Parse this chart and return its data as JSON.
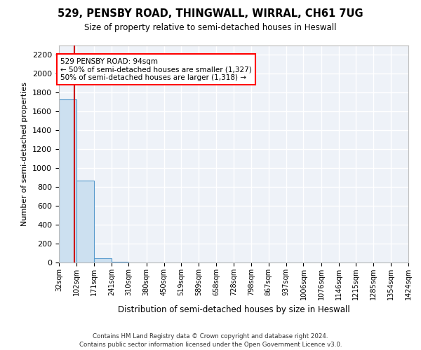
{
  "title": "529, PENSBY ROAD, THINGWALL, WIRRAL, CH61 7UG",
  "subtitle": "Size of property relative to semi-detached houses in Heswall",
  "xlabel": "Distribution of semi-detached houses by size in Heswall",
  "ylabel": "Number of semi-detached properties",
  "footnote1": "Contains HM Land Registry data © Crown copyright and database right 2024.",
  "footnote2": "Contains public sector information licensed under the Open Government Licence v3.0.",
  "bar_edges": [
    32,
    102,
    171,
    241,
    310,
    380,
    450,
    519,
    589,
    658,
    728,
    798,
    867,
    937,
    1006,
    1076,
    1146,
    1215,
    1285,
    1354,
    1424
  ],
  "bar_heights": [
    1730,
    870,
    45,
    5,
    3,
    2,
    2,
    1,
    1,
    1,
    1,
    1,
    1,
    1,
    1,
    1,
    0,
    0,
    0,
    0
  ],
  "bar_color": "#cce0f0",
  "bar_edgecolor": "#5599cc",
  "property_size": 94,
  "property_label": "529 PENSBY ROAD: 94sqm",
  "smaller_label": "← 50% of semi-detached houses are smaller (1,327)",
  "larger_label": "50% of semi-detached houses are larger (1,318) →",
  "vline_color": "#cc0000",
  "ylim": [
    0,
    2300
  ],
  "yticks": [
    0,
    200,
    400,
    600,
    800,
    1000,
    1200,
    1400,
    1600,
    1800,
    2000,
    2200
  ],
  "background_color": "#eef2f8",
  "fig_background_color": "#ffffff",
  "grid_color": "#ffffff"
}
